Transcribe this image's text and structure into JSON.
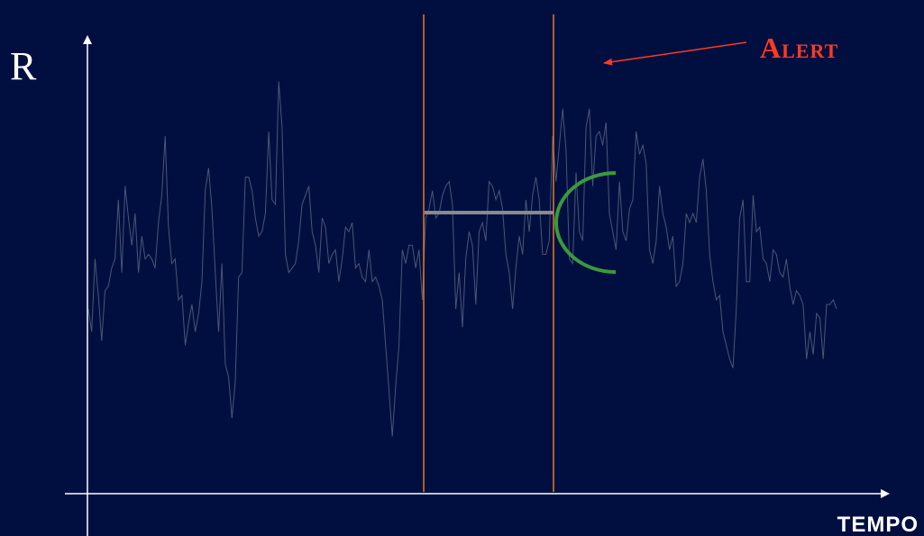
{
  "labels": {
    "y_axis": "R",
    "x_axis": "TEMPO",
    "alert": "Alert"
  },
  "colors": {
    "background": "#000f40",
    "axis": "#ffffff",
    "signal": "#4a5675",
    "window_line": "#e8781e",
    "baseline_segment": "#8a8a8a",
    "threshold_arc": "#3a9a3c",
    "alert": "#ff3b1f"
  },
  "signal": {
    "values": [
      200,
      175,
      255,
      215,
      165,
      220,
      225,
      245,
      255,
      320,
      240,
      335,
      300,
      270,
      305,
      240,
      280,
      255,
      260,
      255,
      245,
      295,
      325,
      390,
      290,
      250,
      255,
      210,
      215,
      160,
      185,
      205,
      175,
      195,
      230,
      330,
      355,
      310,
      240,
      175,
      250,
      140,
      125,
      80,
      120,
      235,
      240,
      345,
      345,
      330,
      300,
      280,
      285,
      305,
      395,
      320,
      315,
      450,
      400,
      260,
      240,
      245,
      250,
      275,
      315,
      325,
      335,
      285,
      270,
      240,
      300,
      290,
      250,
      260,
      265,
      230,
      255,
      290,
      285,
      295,
      245,
      250,
      235,
      230,
      265,
      230,
      235,
      225,
      210,
      160,
      110,
      60,
      115,
      160,
      265,
      250,
      270,
      270,
      245,
      265,
      210,
      300,
      310,
      330,
      300,
      305,
      325,
      335,
      340,
      315,
      200,
      240,
      180,
      255,
      285,
      270,
      205,
      285,
      295,
      275,
      340,
      335,
      320,
      330,
      310,
      260,
      240,
      200,
      245,
      280,
      260,
      320,
      285,
      325,
      345,
      320,
      260,
      260,
      275,
      390,
      340,
      380,
      420,
      375,
      255,
      250,
      350,
      285,
      275,
      400,
      420,
      335,
      390,
      395,
      380,
      405,
      305,
      285,
      265,
      340,
      285,
      275,
      310,
      320,
      395,
      370,
      380,
      360,
      265,
      250,
      275,
      335,
      305,
      290,
      265,
      280,
      225,
      230,
      250,
      305,
      295,
      305,
      295,
      345,
      365,
      330,
      260,
      230,
      210,
      215,
      175,
      160,
      145,
      135,
      200,
      300,
      320,
      230,
      230,
      325,
      285,
      290,
      255,
      250,
      230,
      265,
      260,
      240,
      235,
      255,
      225,
      205,
      220,
      215,
      205,
      145,
      175,
      150,
      195,
      190,
      145,
      205,
      205,
      210,
      200
    ]
  }
}
